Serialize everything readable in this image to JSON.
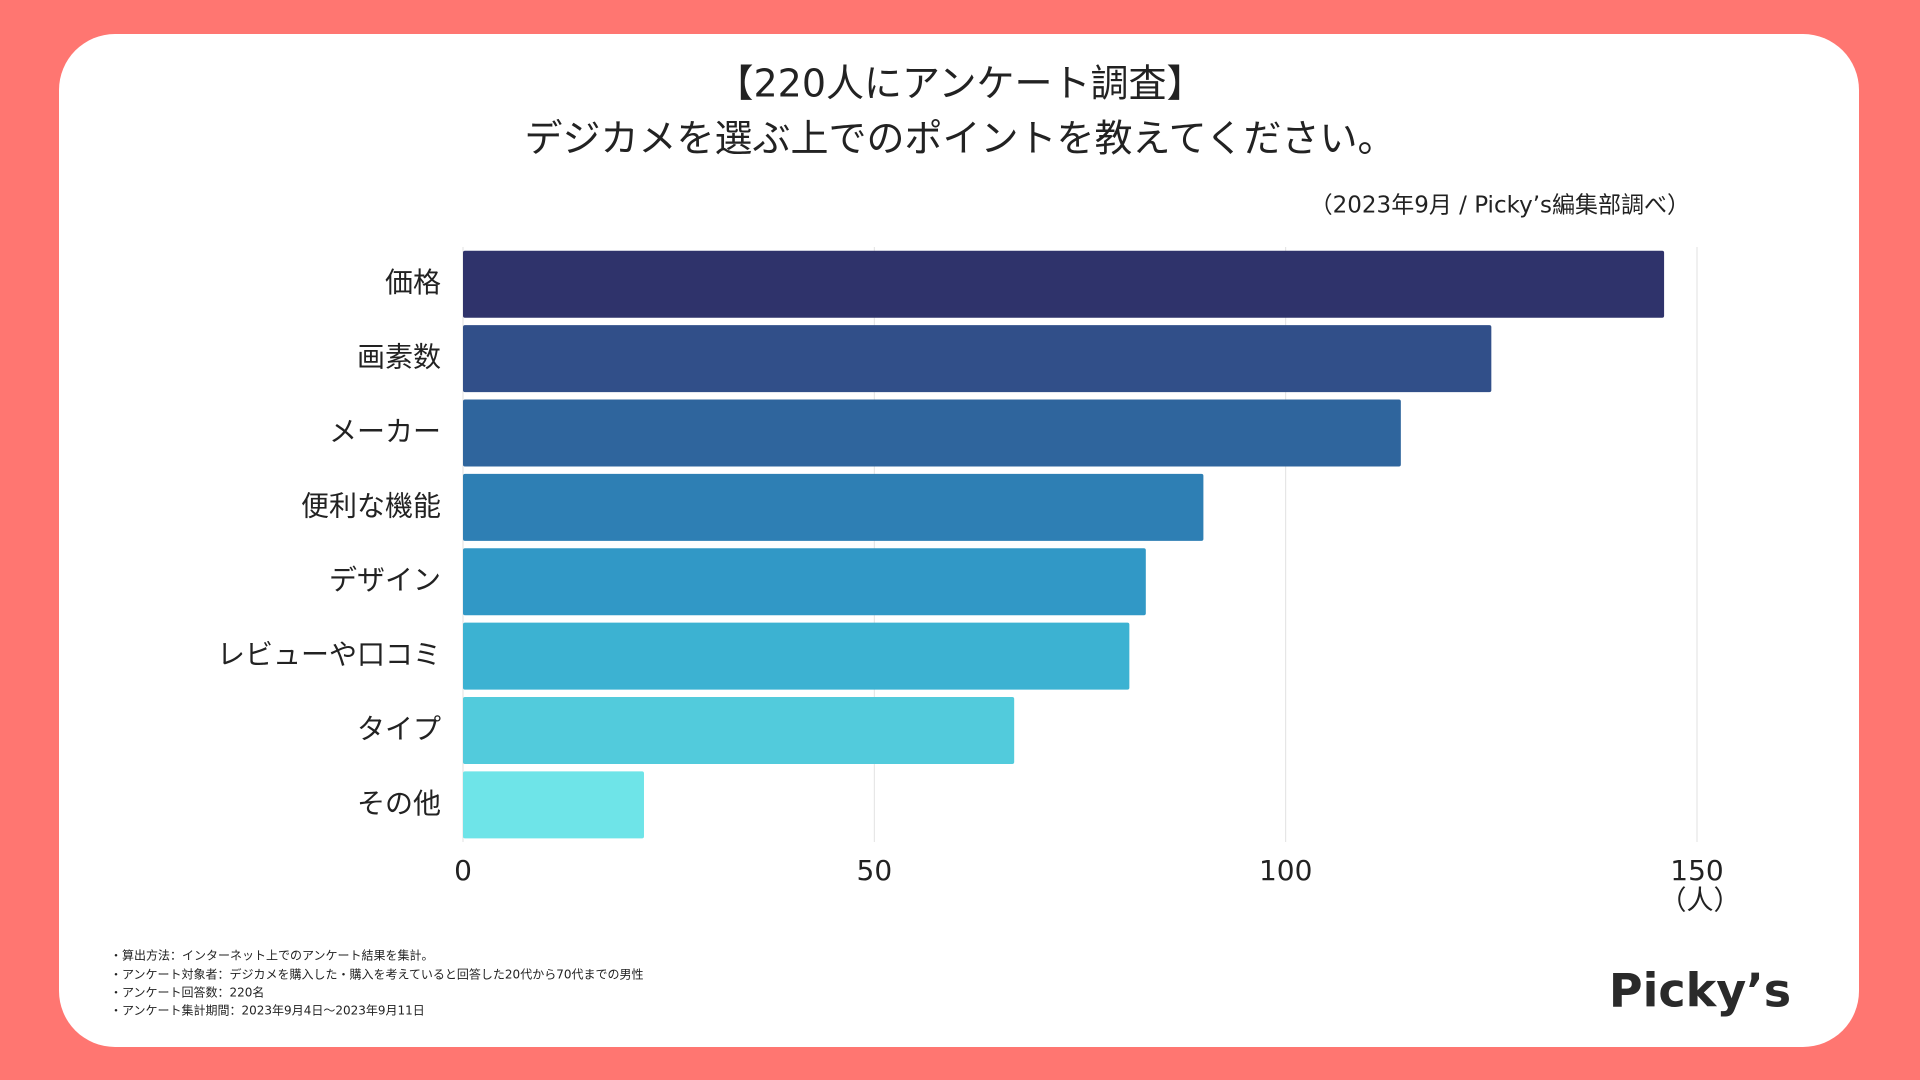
{
  "chart_data": {
    "type": "barh",
    "title": [
      "【220人にアンケート調査】",
      "デジカメを選ぶ上でのポイントを教えてください。"
    ],
    "subtitle": "（2023年9月 / Picky’s編集部調べ）",
    "categories": [
      "価格",
      "画素数",
      "メーカー",
      "便利な機能",
      "デザイン",
      "レビューや口コミ",
      "タイプ",
      "その他"
    ],
    "values": [
      146,
      125,
      114,
      90,
      83,
      81,
      67,
      22
    ],
    "colors": [
      "#2f336b",
      "#314f89",
      "#2f659d",
      "#2e7fb4",
      "#3198c6",
      "#3cb2d2",
      "#52cbdc",
      "#6ee4e8"
    ],
    "xlim": [
      0,
      150
    ],
    "xticks": [
      0,
      50,
      100,
      150
    ],
    "grid": true,
    "x_unit": "（人）",
    "notes": [
      "・算出方法：インターネット上でのアンケート結果を集計。",
      "・アンケート対象者：デジカメを購入した・購入を考えていると回答した20代から70代までの男性",
      "・アンケート回答数：220名",
      "・アンケート集計期間：2023年9月4日〜2023年9月11日"
    ],
    "logo": "Picky’s"
  }
}
